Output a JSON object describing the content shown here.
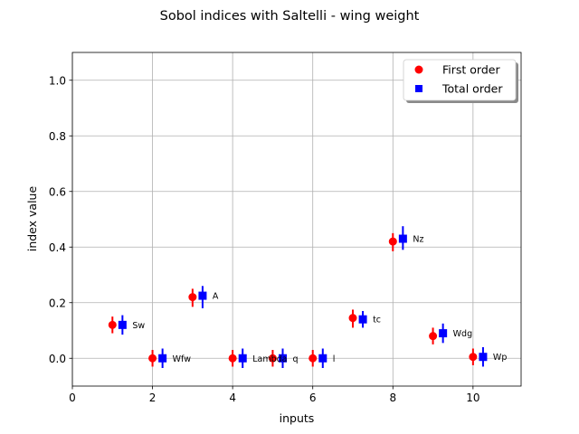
{
  "chart_data": {
    "type": "scatter",
    "title": "Sobol indices with Saltelli - wing weight",
    "xlabel": "inputs",
    "ylabel": "index value",
    "xlim": [
      0,
      11.2
    ],
    "ylim": [
      -0.1,
      1.1
    ],
    "xticks": [
      "0",
      "2",
      "4",
      "6",
      "8",
      "10"
    ],
    "yticks": [
      "0.0",
      "0.2",
      "0.4",
      "0.6",
      "0.8",
      "1.0"
    ],
    "grid": true,
    "legend_position": "top-right",
    "labels": [
      "Sw",
      "Wfw",
      "A",
      "Lambda",
      "q",
      "l",
      "tc",
      "Nz",
      "Wdg",
      "Wp"
    ],
    "series": [
      {
        "name": "First order",
        "marker": "circle",
        "color": "#ff0000",
        "x": [
          1,
          2,
          3,
          4,
          5,
          6,
          7,
          8,
          9,
          10
        ],
        "values": [
          0.12,
          0.0,
          0.22,
          0.0,
          0.0,
          0.0,
          0.145,
          0.42,
          0.08,
          0.005
        ],
        "err_low": [
          0.03,
          0.03,
          0.035,
          0.03,
          0.03,
          0.03,
          0.035,
          0.035,
          0.03,
          0.03
        ],
        "err_high": [
          0.03,
          0.03,
          0.03,
          0.03,
          0.03,
          0.03,
          0.03,
          0.03,
          0.03,
          0.03
        ]
      },
      {
        "name": "Total order",
        "marker": "square",
        "color": "#0000ff",
        "x": [
          1.25,
          2.25,
          3.25,
          4.25,
          5.25,
          6.25,
          7.25,
          8.25,
          9.25,
          10.25
        ],
        "values": [
          0.12,
          0.0,
          0.225,
          0.0,
          0.0,
          0.0,
          0.14,
          0.43,
          0.09,
          0.005
        ],
        "err_low": [
          0.035,
          0.035,
          0.045,
          0.035,
          0.035,
          0.035,
          0.03,
          0.04,
          0.035,
          0.035
        ],
        "err_high": [
          0.035,
          0.035,
          0.035,
          0.035,
          0.035,
          0.035,
          0.03,
          0.045,
          0.035,
          0.035
        ]
      }
    ]
  }
}
